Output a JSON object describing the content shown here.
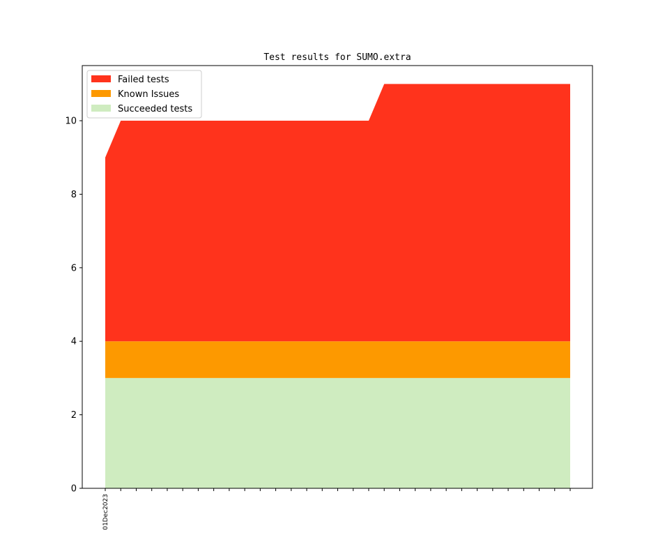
{
  "chart_data": {
    "type": "area",
    "stacked": true,
    "title": "Test results for SUMO.extra",
    "xlabel": "",
    "ylabel": "",
    "ylim": [
      0,
      11.5
    ],
    "yticks": [
      0,
      2,
      4,
      6,
      8,
      10
    ],
    "x_tick_label": "01Dec2023",
    "x_count": 31,
    "legend_position": "top-left",
    "grid": false,
    "series": [
      {
        "name": "Failed tests",
        "color": "#ff331c",
        "values": [
          5,
          6,
          6,
          6,
          6,
          6,
          6,
          6,
          6,
          6,
          6,
          6,
          6,
          6,
          6,
          6,
          6,
          6,
          7,
          7,
          7,
          7,
          7,
          7,
          7,
          7,
          7,
          7,
          7,
          7,
          7
        ]
      },
      {
        "name": "Known Issues",
        "color": "#fd9900",
        "values": [
          1,
          1,
          1,
          1,
          1,
          1,
          1,
          1,
          1,
          1,
          1,
          1,
          1,
          1,
          1,
          1,
          1,
          1,
          1,
          1,
          1,
          1,
          1,
          1,
          1,
          1,
          1,
          1,
          1,
          1,
          1
        ]
      },
      {
        "name": "Succeeded tests",
        "color": "#cfecc0",
        "values": [
          3,
          3,
          3,
          3,
          3,
          3,
          3,
          3,
          3,
          3,
          3,
          3,
          3,
          3,
          3,
          3,
          3,
          3,
          3,
          3,
          3,
          3,
          3,
          3,
          3,
          3,
          3,
          3,
          3,
          3,
          3
        ]
      }
    ]
  }
}
